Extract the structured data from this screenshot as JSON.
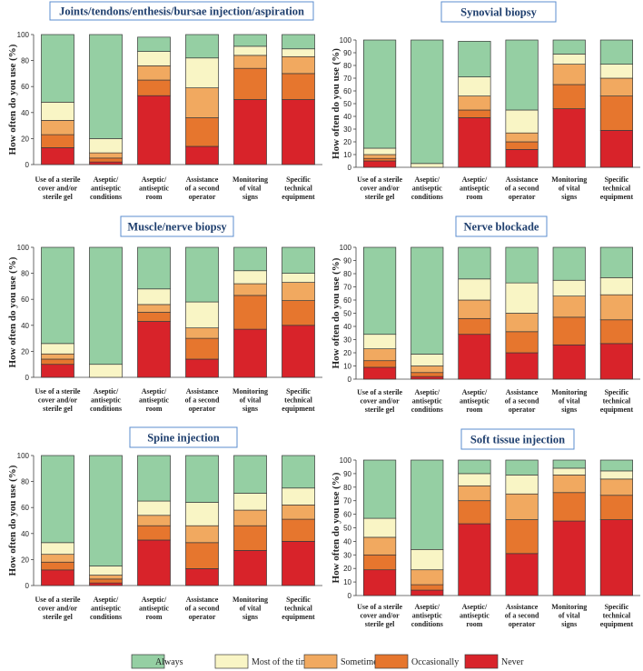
{
  "series_names": [
    "Never",
    "Occasionally",
    "Sometimes",
    "Most of the time",
    "Always"
  ],
  "legend_order": [
    "Always",
    "Most of the time",
    "Sometimes",
    "Occasionally",
    "Never"
  ],
  "colors": {
    "Always": "#95cfa3",
    "Most of the time": "#f9f5c5",
    "Sometimes": "#f1a960",
    "Occasionally": "#e6762e",
    "Never": "#d8232a"
  },
  "chart_data": [
    {
      "type": "bar",
      "stacked": true,
      "title": "Joints/tendons/enthesis/bursae injection/aspiration",
      "ylabel": "How often do you use (%)",
      "ylim": [
        0,
        100
      ],
      "yticks": [
        0,
        20,
        40,
        60,
        80,
        100
      ],
      "categories": [
        [
          "Use of a sterile",
          "cover and/or",
          "sterile gel"
        ],
        [
          "Aseptic/",
          "antiseptic",
          "conditions"
        ],
        [
          "Aseptic/",
          "antiseptic",
          "room"
        ],
        [
          "Assistance",
          "of a second",
          "operator"
        ],
        [
          "Monitoring",
          "of vital",
          "signs"
        ],
        [
          "Specific",
          "technical",
          "equipment"
        ]
      ],
      "series": [
        {
          "name": "Never",
          "values": [
            13,
            2,
            53,
            14,
            50,
            50
          ]
        },
        {
          "name": "Occasionally",
          "values": [
            10,
            3,
            12,
            22,
            24,
            20
          ]
        },
        {
          "name": "Sometimes",
          "values": [
            11,
            4,
            11,
            23,
            10,
            13
          ]
        },
        {
          "name": "Most of the time",
          "values": [
            14,
            11,
            11,
            23,
            7,
            6
          ]
        },
        {
          "name": "Always",
          "values": [
            52,
            80,
            11,
            18,
            9,
            11
          ]
        }
      ]
    },
    {
      "type": "bar",
      "stacked": true,
      "title": "Synovial biopsy",
      "ylabel": "How often do you use (%)",
      "ylim": [
        0,
        100
      ],
      "yticks": [
        0,
        10,
        20,
        30,
        40,
        50,
        60,
        70,
        80,
        90,
        100
      ],
      "categories": [
        [
          "Use of a sterile",
          "cover and/or",
          "sterile gel"
        ],
        [
          "Aseptic/",
          "antiseptic",
          "conditions"
        ],
        [
          "Aseptic/",
          "antiseptic",
          "room"
        ],
        [
          "Assistance",
          "of a second",
          "operator"
        ],
        [
          "Monitoring",
          "of vital",
          "signs"
        ],
        [
          "Specific",
          "technical",
          "equipment"
        ]
      ],
      "series": [
        {
          "name": "Never",
          "values": [
            5,
            0,
            39,
            14,
            46,
            29
          ]
        },
        {
          "name": "Occasionally",
          "values": [
            2,
            0,
            6,
            6,
            19,
            27
          ]
        },
        {
          "name": "Sometimes",
          "values": [
            3,
            0,
            11,
            7,
            16,
            14
          ]
        },
        {
          "name": "Most of the time",
          "values": [
            5,
            3,
            15,
            18,
            8,
            11
          ]
        },
        {
          "name": "Always",
          "values": [
            85,
            97,
            28,
            55,
            11,
            19
          ]
        }
      ]
    },
    {
      "type": "bar",
      "stacked": true,
      "title": "Muscle/nerve biopsy",
      "ylabel": "How often do you use (%)",
      "ylim": [
        0,
        100
      ],
      "yticks": [
        0,
        20,
        40,
        60,
        80,
        100
      ],
      "categories": [
        [
          "Use of a sterile",
          "cover and/or",
          "sterile gel"
        ],
        [
          "Aseptic/",
          "antiseptic",
          "conditions"
        ],
        [
          "Aseptic/",
          "antiseptic",
          "room"
        ],
        [
          "Assistance",
          "of a second",
          "operator"
        ],
        [
          "Monitoring",
          "of vital",
          "signs"
        ],
        [
          "Specific",
          "technical",
          "equipment"
        ]
      ],
      "series": [
        {
          "name": "Never",
          "values": [
            10,
            0,
            43,
            14,
            37,
            40
          ]
        },
        {
          "name": "Occasionally",
          "values": [
            4,
            0,
            7,
            16,
            26,
            19
          ]
        },
        {
          "name": "Sometimes",
          "values": [
            4,
            0,
            6,
            8,
            9,
            14
          ]
        },
        {
          "name": "Most of the time",
          "values": [
            8,
            10,
            12,
            20,
            10,
            7
          ]
        },
        {
          "name": "Always",
          "values": [
            74,
            90,
            32,
            42,
            18,
            20
          ]
        }
      ]
    },
    {
      "type": "bar",
      "stacked": true,
      "title": "Nerve blockade",
      "ylabel": "How often do you use (%)",
      "ylim": [
        0,
        100
      ],
      "yticks": [
        0,
        10,
        20,
        30,
        40,
        50,
        60,
        70,
        80,
        90,
        100
      ],
      "categories": [
        [
          "Use of a sterile",
          "cover and/or",
          "sterile gel"
        ],
        [
          "Aseptic/",
          "antiseptic",
          "conditions"
        ],
        [
          "Aseptic/",
          "antiseptic",
          "room"
        ],
        [
          "Assistance",
          "of a second",
          "operator"
        ],
        [
          "Monitoring",
          "of vital",
          "signs"
        ],
        [
          "Specific",
          "technical",
          "equipment"
        ]
      ],
      "series": [
        {
          "name": "Never",
          "values": [
            9,
            2,
            34,
            20,
            26,
            27
          ]
        },
        {
          "name": "Occasionally",
          "values": [
            5,
            3,
            12,
            16,
            21,
            18
          ]
        },
        {
          "name": "Sometimes",
          "values": [
            9,
            5,
            14,
            14,
            16,
            19
          ]
        },
        {
          "name": "Most of the time",
          "values": [
            11,
            9,
            16,
            23,
            12,
            13
          ]
        },
        {
          "name": "Always",
          "values": [
            66,
            81,
            24,
            27,
            25,
            23
          ]
        }
      ]
    },
    {
      "type": "bar",
      "stacked": true,
      "title": "Spine injection",
      "ylabel": "How often do you use (%)",
      "ylim": [
        0,
        100
      ],
      "yticks": [
        0,
        20,
        40,
        60,
        80,
        100
      ],
      "categories": [
        [
          "Use of a sterile",
          "cover and/or",
          "sterile gel"
        ],
        [
          "Aseptic/",
          "antiseptic",
          "conditions"
        ],
        [
          "Aseptic/",
          "antiseptic",
          "room"
        ],
        [
          "Assistance",
          "of a second",
          "operator"
        ],
        [
          "Monitoring",
          "of vital",
          "signs"
        ],
        [
          "Specific",
          "technical",
          "equipment"
        ]
      ],
      "series": [
        {
          "name": "Never",
          "values": [
            12,
            2,
            35,
            13,
            27,
            34
          ]
        },
        {
          "name": "Occasionally",
          "values": [
            6,
            3,
            11,
            20,
            19,
            17
          ]
        },
        {
          "name": "Sometimes",
          "values": [
            6,
            3,
            8,
            13,
            12,
            11
          ]
        },
        {
          "name": "Most of the time",
          "values": [
            9,
            7,
            11,
            18,
            13,
            13
          ]
        },
        {
          "name": "Always",
          "values": [
            67,
            85,
            35,
            36,
            29,
            25
          ]
        }
      ]
    },
    {
      "type": "bar",
      "stacked": true,
      "title": "Soft tissue injection",
      "ylabel": "How often do you use (%)",
      "ylim": [
        0,
        100
      ],
      "yticks": [
        0,
        10,
        20,
        30,
        40,
        50,
        60,
        70,
        80,
        90,
        100
      ],
      "categories": [
        [
          "Use of a sterile",
          "cover and/or",
          "sterile gel"
        ],
        [
          "Aseptic/",
          "antiseptic",
          "conditions"
        ],
        [
          "Aseptic/",
          "antiseptic",
          "room"
        ],
        [
          "Assistance",
          "of a second",
          "operator"
        ],
        [
          "Monitoring",
          "of vital",
          "signs"
        ],
        [
          "Specific",
          "technical",
          "equipment"
        ]
      ],
      "series": [
        {
          "name": "Never",
          "values": [
            19,
            4,
            53,
            31,
            55,
            56
          ]
        },
        {
          "name": "Occasionally",
          "values": [
            11,
            4,
            17,
            25,
            21,
            18
          ]
        },
        {
          "name": "Sometimes",
          "values": [
            13,
            11,
            11,
            19,
            13,
            12
          ]
        },
        {
          "name": "Most of the time",
          "values": [
            14,
            15,
            9,
            14,
            5,
            6
          ]
        },
        {
          "name": "Always",
          "values": [
            43,
            66,
            10,
            11,
            6,
            8
          ]
        }
      ]
    }
  ]
}
